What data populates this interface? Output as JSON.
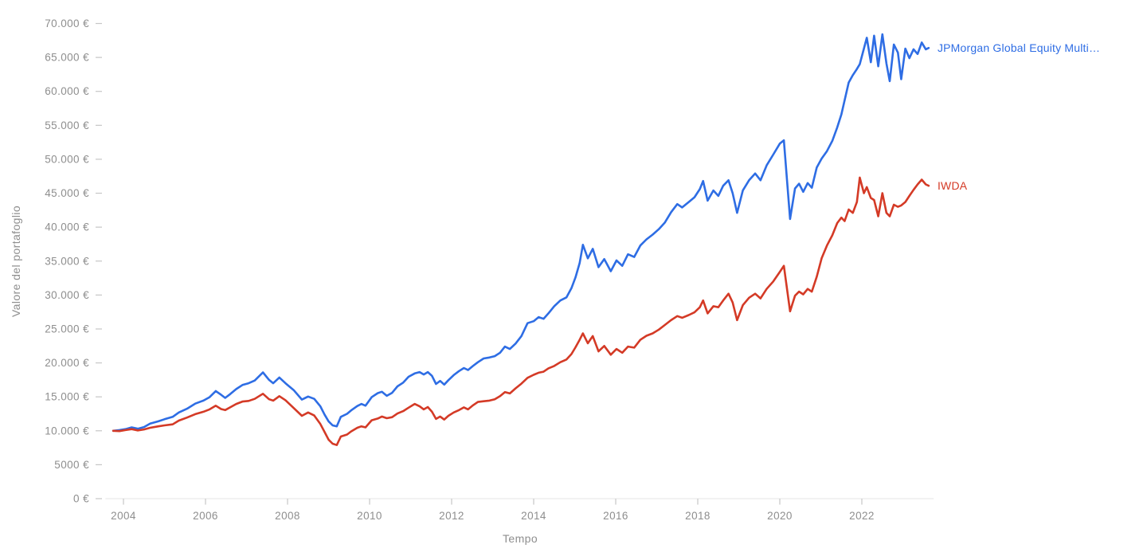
{
  "colors": {
    "background": "#ffffff",
    "axis_line": "#e4e4e4",
    "tick_mark": "#c6c6c6",
    "axis_text": "#8e8e8e",
    "series_blue": "#2e6de4",
    "series_red": "#d43a26"
  },
  "chart_data": {
    "type": "line",
    "title": "",
    "xlabel": "Tempo",
    "ylabel": "Valore del portafoglio",
    "legend_position": "line-end-right",
    "grid": false,
    "xlim": [
      2003.6,
      2023.75
    ],
    "ylim": [
      0,
      70000
    ],
    "x_ticks": [
      {
        "value": 2004,
        "label": "2004"
      },
      {
        "value": 2006,
        "label": "2006"
      },
      {
        "value": 2008,
        "label": "2008"
      },
      {
        "value": 2010,
        "label": "2010"
      },
      {
        "value": 2012,
        "label": "2012"
      },
      {
        "value": 2014,
        "label": "2014"
      },
      {
        "value": 2016,
        "label": "2016"
      },
      {
        "value": 2018,
        "label": "2018"
      },
      {
        "value": 2020,
        "label": "2020"
      },
      {
        "value": 2022,
        "label": "2022"
      }
    ],
    "y_ticks": [
      {
        "value": 0,
        "label": "0 €"
      },
      {
        "value": 5000,
        "label": "5000 €"
      },
      {
        "value": 10000,
        "label": "10.000 €"
      },
      {
        "value": 15000,
        "label": "15.000 €"
      },
      {
        "value": 20000,
        "label": "20.000 €"
      },
      {
        "value": 25000,
        "label": "25.000 €"
      },
      {
        "value": 30000,
        "label": "30.000 €"
      },
      {
        "value": 35000,
        "label": "35.000 €"
      },
      {
        "value": 40000,
        "label": "40.000 €"
      },
      {
        "value": 45000,
        "label": "45.000 €"
      },
      {
        "value": 50000,
        "label": "50.000 €"
      },
      {
        "value": 55000,
        "label": "55.000 €"
      },
      {
        "value": 60000,
        "label": "60.000 €"
      },
      {
        "value": 65000,
        "label": "65.000 €"
      },
      {
        "value": 70000,
        "label": "70.000 €"
      }
    ],
    "x": [
      2003.75,
      2003.9,
      2004.05,
      2004.2,
      2004.35,
      2004.5,
      2004.65,
      2004.85,
      2005.0,
      2005.2,
      2005.35,
      2005.55,
      2005.75,
      2005.95,
      2006.1,
      2006.25,
      2006.38,
      2006.48,
      2006.6,
      2006.75,
      2006.9,
      2007.05,
      2007.2,
      2007.4,
      2007.55,
      2007.65,
      2007.8,
      2007.95,
      2008.15,
      2008.35,
      2008.5,
      2008.65,
      2008.8,
      2008.9,
      2009.0,
      2009.1,
      2009.2,
      2009.3,
      2009.45,
      2009.55,
      2009.7,
      2009.8,
      2009.9,
      2010.05,
      2010.2,
      2010.3,
      2010.42,
      2010.55,
      2010.68,
      2010.82,
      2010.95,
      2011.1,
      2011.22,
      2011.32,
      2011.42,
      2011.52,
      2011.62,
      2011.72,
      2011.82,
      2011.92,
      2012.05,
      2012.18,
      2012.3,
      2012.4,
      2012.52,
      2012.64,
      2012.78,
      2012.92,
      2013.05,
      2013.18,
      2013.3,
      2013.42,
      2013.56,
      2013.7,
      2013.85,
      2014.0,
      2014.12,
      2014.24,
      2014.36,
      2014.5,
      2014.65,
      2014.8,
      2014.92,
      2015.02,
      2015.12,
      2015.2,
      2015.32,
      2015.44,
      2015.58,
      2015.72,
      2015.88,
      2016.02,
      2016.16,
      2016.3,
      2016.45,
      2016.6,
      2016.75,
      2016.9,
      2017.05,
      2017.2,
      2017.35,
      2017.5,
      2017.62,
      2017.78,
      2017.92,
      2018.05,
      2018.13,
      2018.24,
      2018.38,
      2018.5,
      2018.62,
      2018.75,
      2018.85,
      2018.96,
      2019.1,
      2019.25,
      2019.4,
      2019.53,
      2019.68,
      2019.84,
      2020.0,
      2020.1,
      2020.25,
      2020.37,
      2020.47,
      2020.57,
      2020.68,
      2020.78,
      2020.9,
      2021.02,
      2021.15,
      2021.28,
      2021.4,
      2021.5,
      2021.58,
      2021.68,
      2021.78,
      2021.88,
      2021.95,
      2022.05,
      2022.12,
      2022.22,
      2022.3,
      2022.4,
      2022.5,
      2022.6,
      2022.68,
      2022.78,
      2022.88,
      2022.96,
      2023.06,
      2023.16,
      2023.26,
      2023.36,
      2023.46,
      2023.56,
      2023.63
    ],
    "series": [
      {
        "name": "JPMorgan Global Equity Multi…",
        "label": "JPMorgan Global Equity Multi…",
        "color": "#2e6de4",
        "values": [
          10000,
          10100,
          10250,
          10500,
          10300,
          10550,
          11050,
          11400,
          11700,
          12050,
          12700,
          13250,
          14000,
          14450,
          14950,
          15850,
          15300,
          14850,
          15400,
          16150,
          16750,
          17000,
          17400,
          18600,
          17500,
          17000,
          17850,
          17000,
          16000,
          14600,
          15050,
          14700,
          13600,
          12400,
          11400,
          10800,
          10650,
          12050,
          12500,
          13000,
          13650,
          13950,
          13700,
          14950,
          15550,
          15750,
          15150,
          15600,
          16550,
          17100,
          17950,
          18450,
          18650,
          18300,
          18650,
          18100,
          16900,
          17350,
          16800,
          17450,
          18200,
          18800,
          19250,
          18950,
          19550,
          20100,
          20650,
          20800,
          21000,
          21500,
          22400,
          22050,
          22850,
          23950,
          25850,
          26150,
          26750,
          26500,
          27300,
          28350,
          29200,
          29650,
          31000,
          32600,
          34700,
          37400,
          35400,
          36800,
          34100,
          35300,
          33500,
          35100,
          34300,
          36000,
          35600,
          37300,
          38200,
          38900,
          39700,
          40700,
          42200,
          43400,
          42900,
          43700,
          44400,
          45600,
          46800,
          43900,
          45400,
          44600,
          46100,
          46900,
          45000,
          42100,
          45400,
          46900,
          47900,
          46900,
          49100,
          50700,
          52300,
          52800,
          41200,
          45700,
          46400,
          45200,
          46500,
          45800,
          48800,
          50100,
          51200,
          52700,
          54700,
          56600,
          58700,
          61300,
          62400,
          63300,
          64000,
          66300,
          67900,
          64300,
          68200,
          63700,
          68400,
          64100,
          61500,
          66900,
          65700,
          61800,
          66300,
          64900,
          66200,
          65500,
          67200,
          66200,
          66400
        ]
      },
      {
        "name": "IWDA",
        "label": "IWDA",
        "color": "#d43a26",
        "values": [
          10000,
          9950,
          10100,
          10250,
          10050,
          10200,
          10450,
          10650,
          10800,
          10950,
          11500,
          11950,
          12450,
          12800,
          13150,
          13700,
          13200,
          13050,
          13450,
          13950,
          14300,
          14400,
          14700,
          15450,
          14650,
          14450,
          15100,
          14500,
          13350,
          12200,
          12700,
          12250,
          11000,
          9850,
          8700,
          8100,
          7900,
          9150,
          9450,
          9900,
          10450,
          10650,
          10500,
          11550,
          11800,
          12100,
          11850,
          12000,
          12550,
          12900,
          13400,
          13950,
          13600,
          13150,
          13500,
          12800,
          11750,
          12100,
          11650,
          12200,
          12700,
          13050,
          13450,
          13150,
          13750,
          14250,
          14350,
          14450,
          14650,
          15100,
          15700,
          15500,
          16250,
          16950,
          17800,
          18250,
          18550,
          18700,
          19200,
          19550,
          20100,
          20500,
          21300,
          22300,
          23400,
          24350,
          22900,
          23950,
          21700,
          22500,
          21200,
          22050,
          21500,
          22400,
          22250,
          23400,
          24000,
          24350,
          24900,
          25600,
          26300,
          26900,
          26650,
          27050,
          27450,
          28200,
          29200,
          27300,
          28350,
          28200,
          29200,
          30200,
          28900,
          26300,
          28500,
          29600,
          30200,
          29500,
          30900,
          32000,
          33400,
          34300,
          27600,
          29900,
          30500,
          30100,
          30900,
          30500,
          32700,
          35400,
          37300,
          38800,
          40600,
          41400,
          40900,
          42600,
          42100,
          43700,
          47300,
          45000,
          45900,
          44300,
          44000,
          41600,
          45000,
          42100,
          41600,
          43300,
          43000,
          43200,
          43700,
          44600,
          45500,
          46300,
          47000,
          46300,
          46100
        ]
      }
    ]
  }
}
